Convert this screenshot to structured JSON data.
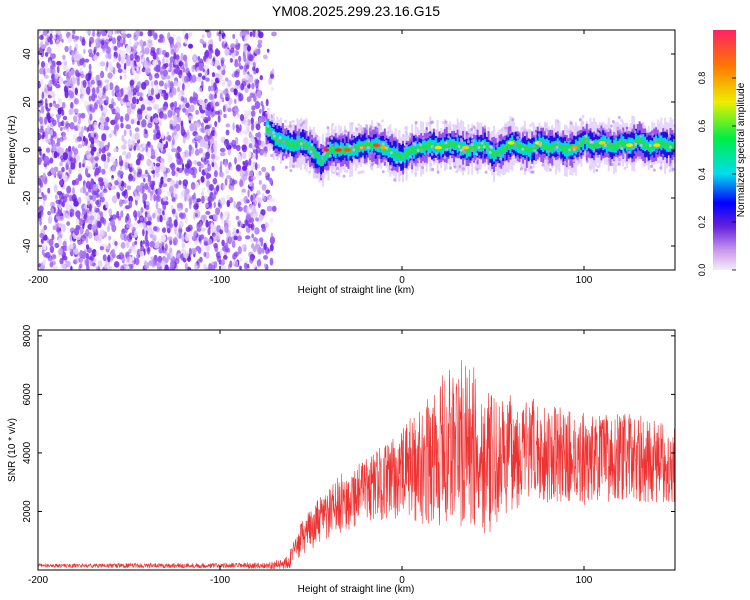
{
  "title": "YM08.2025.299.23.16.G15",
  "chart_data": [
    {
      "type": "heatmap",
      "name": "spectrogram",
      "xlabel": "Height of straight line (km)",
      "ylabel": "Frequency (Hz)",
      "xlim": [
        -200,
        150
      ],
      "ylim": [
        -50,
        50
      ],
      "xticks": [
        -200,
        -100,
        0,
        100
      ],
      "yticks": [
        -40,
        -20,
        0,
        20,
        40
      ],
      "noise_region_x": [
        -200,
        -70
      ],
      "signal_ridge": {
        "x": [
          -75,
          -70,
          -60,
          -55,
          -50,
          -45,
          -40,
          -35,
          -30,
          -25,
          -20,
          -15,
          -10,
          -5,
          0,
          5,
          10,
          15,
          20,
          25,
          30,
          35,
          40,
          45,
          50,
          55,
          60,
          65,
          70,
          75,
          80,
          85,
          90,
          95,
          100,
          105,
          110,
          115,
          120,
          125,
          130,
          135,
          140,
          145,
          150
        ],
        "freq": [
          9,
          5,
          2,
          3,
          0,
          -5,
          0,
          0,
          0,
          1,
          2,
          2,
          1,
          -2,
          -3,
          0,
          1,
          2,
          1,
          2,
          2,
          0,
          1,
          2,
          -2,
          0,
          3,
          1,
          0,
          3,
          1,
          2,
          0,
          1,
          4,
          2,
          3,
          1,
          3,
          2,
          4,
          1,
          3,
          2,
          2
        ]
      },
      "colorbar": {
        "label": "Normalized spectral amplitude",
        "range": [
          0,
          1
        ],
        "ticks": [
          "0.0",
          "0.2",
          "0.4",
          "0.6",
          "0.8"
        ],
        "tick_values": [
          0.0,
          0.2,
          0.4,
          0.6,
          0.8
        ]
      }
    },
    {
      "type": "line",
      "name": "snr",
      "xlabel": "Height of straight line (km)",
      "ylabel": "SNR (10 * v/v)",
      "xlim": [
        -200,
        150
      ],
      "ylim": [
        0,
        8200
      ],
      "xticks": [
        -200,
        -100,
        0,
        100
      ],
      "yticks": [
        2000,
        4000,
        6000,
        8000
      ],
      "series": [
        {
          "name": "SNR",
          "color": "#ee3333",
          "envelope": {
            "x": [
              -200,
              -150,
              -100,
              -75,
              -65,
              -60,
              -55,
              -50,
              -45,
              -40,
              -35,
              -30,
              -25,
              -20,
              -15,
              -10,
              -5,
              0,
              5,
              10,
              15,
              20,
              25,
              30,
              35,
              40,
              45,
              50,
              55,
              60,
              70,
              80,
              90,
              100,
              110,
              120,
              130,
              140,
              150
            ],
            "mid": [
              150,
              150,
              150,
              150,
              200,
              500,
              1100,
              1400,
              1700,
              1900,
              2200,
              2400,
              2600,
              2700,
              2900,
              3000,
              3100,
              3300,
              3500,
              3600,
              3700,
              3900,
              4200,
              4300,
              4200,
              4100,
              3800,
              3600,
              3700,
              4000,
              4100,
              4000,
              3900,
              3800,
              3800,
              3900,
              3800,
              3700,
              3600
            ],
            "amp": [
              60,
              80,
              90,
              100,
              200,
              400,
              600,
              700,
              800,
              900,
              1000,
              1100,
              1100,
              1100,
              1200,
              1300,
              1400,
              1500,
              1800,
              2000,
              2200,
              2500,
              2800,
              3000,
              3000,
              2800,
              2600,
              2300,
              2100,
              2000,
              1800,
              1700,
              1600,
              1600,
              1500,
              1500,
              1500,
              1400,
              1300
            ]
          }
        }
      ]
    }
  ]
}
